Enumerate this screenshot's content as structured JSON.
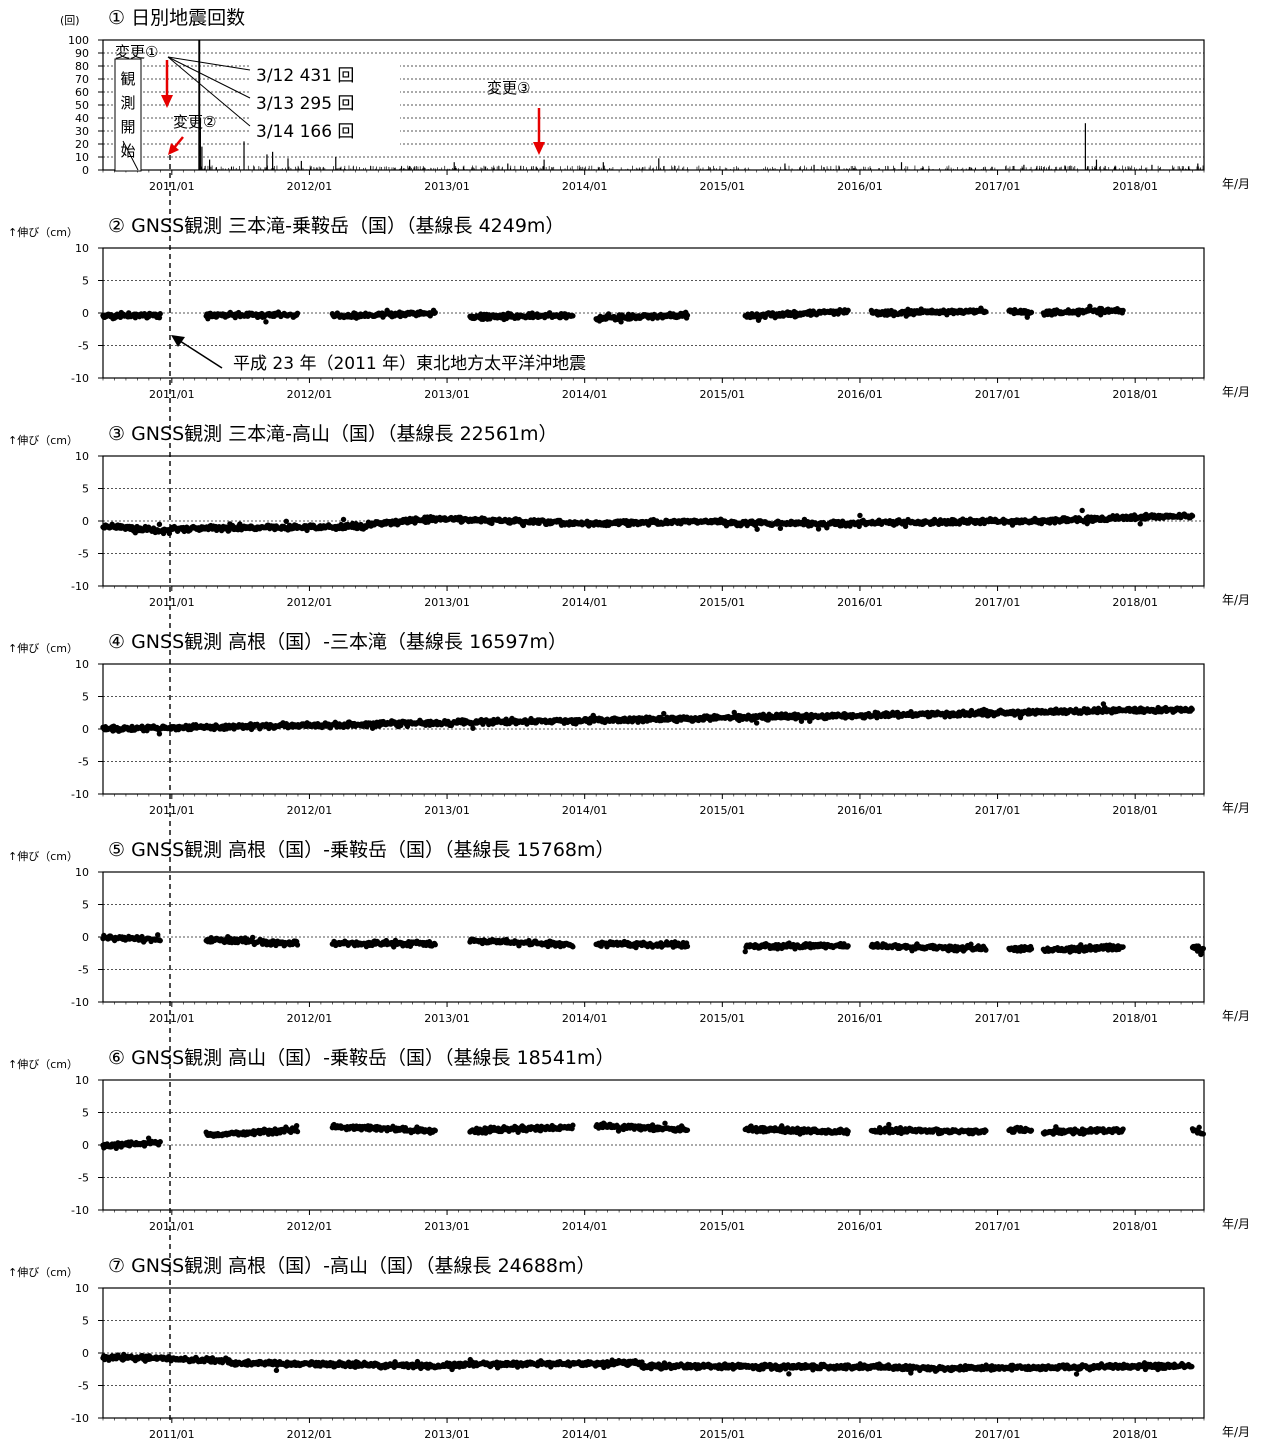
{
  "earthquake_annotations": {
    "unit": "(回)",
    "observation_start": [
      "観",
      "測",
      "開",
      "始"
    ],
    "change1": "変更①",
    "change2": "変更②",
    "change3": "変更③",
    "counts": [
      "3/12 431 回",
      "3/13 295 回",
      "3/14 166 回"
    ],
    "tohoku": "平成 23 年（2011 年）東北地方太平洋沖地震"
  },
  "chart_data": [
    {
      "type": "bar",
      "title": "① 日別地震回数",
      "xlabel": "年/月",
      "ylabel": "(回)",
      "ylim": [
        0,
        100
      ],
      "yticks": [
        0,
        10,
        20,
        30,
        40,
        50,
        60,
        70,
        80,
        90,
        100
      ],
      "xticks": [
        "2011/01",
        "2012/01",
        "2013/01",
        "2014/01",
        "2015/01",
        "2016/01",
        "2017/01",
        "2018/01"
      ],
      "xrange": [
        "2010/07",
        "2018/07"
      ],
      "grid": true,
      "spikes": [
        {
          "date": "2011/03/12",
          "value": 431
        },
        {
          "date": "2011/03/13",
          "value": 295
        },
        {
          "date": "2011/03/14",
          "value": 166
        },
        {
          "date": "2011/03/16",
          "value": 40
        },
        {
          "date": "2011/03/20",
          "value": 18
        },
        {
          "date": "2011/04/10",
          "value": 8
        },
        {
          "date": "2011/07/10",
          "value": 22
        },
        {
          "date": "2011/09/10",
          "value": 12
        },
        {
          "date": "2011/09/25",
          "value": 14
        },
        {
          "date": "2011/11/05",
          "value": 9
        },
        {
          "date": "2011/12/10",
          "value": 7
        },
        {
          "date": "2012/03/10",
          "value": 10
        },
        {
          "date": "2013/01/20",
          "value": 6
        },
        {
          "date": "2013/06/10",
          "value": 5
        },
        {
          "date": "2013/09/15",
          "value": 8
        },
        {
          "date": "2014/02/20",
          "value": 6
        },
        {
          "date": "2014/07/15",
          "value": 9
        },
        {
          "date": "2015/06/15",
          "value": 5
        },
        {
          "date": "2015/09/01",
          "value": 4
        },
        {
          "date": "2016/04/20",
          "value": 6
        },
        {
          "date": "2017/03/10",
          "value": 4
        },
        {
          "date": "2017/08/21",
          "value": 36
        },
        {
          "date": "2017/09/20",
          "value": 8
        },
        {
          "date": "2018/02/15",
          "value": 4
        },
        {
          "date": "2018/06/15",
          "value": 5
        }
      ],
      "annotations": {
        "change1": "2011/03/01",
        "change2": "2011/03/10",
        "change3": "2013/11/01"
      }
    },
    {
      "type": "scatter",
      "title": "② GNSS観測 三本滝-乗鞍岳（国）（基線長 4249m）",
      "ylabel": "↑伸び（cm）",
      "xlabel": "年/月",
      "ylim": [
        -10,
        10
      ],
      "yticks": [
        -10,
        -5,
        0,
        5,
        10
      ],
      "xticks": [
        "2011/01",
        "2012/01",
        "2013/01",
        "2014/01",
        "2015/01",
        "2016/01",
        "2017/01",
        "2018/01"
      ],
      "xrange": [
        "2010/07",
        "2018/07"
      ],
      "grid": true,
      "series": [
        {
          "segments": [
            {
              "start": "2010/07",
              "end": "2010/12",
              "y": [
                -0.5,
                -0.3
              ]
            },
            {
              "start": "2011/04",
              "end": "2011/12",
              "y": [
                -0.4,
                -0.2
              ]
            },
            {
              "start": "2012/03",
              "end": "2012/12",
              "y": [
                -0.5,
                0.0
              ]
            },
            {
              "start": "2013/03",
              "end": "2013/12",
              "y": [
                -0.6,
                -0.4
              ]
            },
            {
              "start": "2014/02",
              "end": "2014/10",
              "y": [
                -0.8,
                -0.3
              ]
            },
            {
              "start": "2015/03",
              "end": "2015/12",
              "y": [
                -0.5,
                0.3
              ]
            },
            {
              "start": "2016/02",
              "end": "2016/12",
              "y": [
                0.0,
                0.3
              ]
            },
            {
              "start": "2017/02",
              "end": "2017/04",
              "y": [
                0.2,
                0.0
              ]
            },
            {
              "start": "2017/05",
              "end": "2017/12",
              "y": [
                0.0,
                0.5
              ]
            }
          ]
        }
      ]
    },
    {
      "type": "scatter",
      "title": "③ GNSS観測 三本滝-高山（国）（基線長 22561m）",
      "ylabel": "↑伸び（cm）",
      "xlabel": "年/月",
      "ylim": [
        -10,
        10
      ],
      "yticks": [
        -10,
        -5,
        0,
        5,
        10
      ],
      "xticks": [
        "2011/01",
        "2012/01",
        "2013/01",
        "2014/01",
        "2015/01",
        "2016/01",
        "2017/01",
        "2018/01"
      ],
      "xrange": [
        "2010/07",
        "2018/07"
      ],
      "grid": true,
      "series": [
        {
          "segments": [
            {
              "start": "2010/07",
              "end": "2011/01",
              "y": [
                -0.8,
                -1.5
              ]
            },
            {
              "start": "2011/01",
              "end": "2012/06",
              "y": [
                -1.2,
                -0.8
              ]
            },
            {
              "start": "2012/06",
              "end": "2013/01",
              "y": [
                -0.5,
                0.4
              ]
            },
            {
              "start": "2013/01",
              "end": "2014/01",
              "y": [
                0.3,
                -0.4
              ]
            },
            {
              "start": "2014/01",
              "end": "2015/01",
              "y": [
                -0.4,
                0.0
              ]
            },
            {
              "start": "2015/01",
              "end": "2016/01",
              "y": [
                -0.3,
                -0.4
              ]
            },
            {
              "start": "2016/01",
              "end": "2017/01",
              "y": [
                -0.3,
                0.0
              ]
            },
            {
              "start": "2017/01",
              "end": "2018/06",
              "y": [
                -0.2,
                0.8
              ]
            }
          ]
        }
      ]
    },
    {
      "type": "scatter",
      "title": "④ GNSS観測 高根（国）-三本滝（基線長 16597m）",
      "ylabel": "↑伸び（cm）",
      "xlabel": "年/月",
      "ylim": [
        -10,
        10
      ],
      "yticks": [
        -10,
        -5,
        0,
        5,
        10
      ],
      "xticks": [
        "2011/01",
        "2012/01",
        "2013/01",
        "2014/01",
        "2015/01",
        "2016/01",
        "2017/01",
        "2018/01"
      ],
      "xrange": [
        "2010/07",
        "2018/07"
      ],
      "grid": true,
      "series": [
        {
          "segments": [
            {
              "start": "2010/07",
              "end": "2018/06",
              "y": [
                0.0,
                3.0
              ]
            }
          ]
        }
      ]
    },
    {
      "type": "scatter",
      "title": "⑤ GNSS観測 高根（国）-乗鞍岳（国）（基線長 15768m）",
      "ylabel": "↑伸び（cm）",
      "xlabel": "年/月",
      "ylim": [
        -10,
        10
      ],
      "yticks": [
        -10,
        -5,
        0,
        5,
        10
      ],
      "xticks": [
        "2011/01",
        "2012/01",
        "2013/01",
        "2014/01",
        "2015/01",
        "2016/01",
        "2017/01",
        "2018/01"
      ],
      "xrange": [
        "2010/07",
        "2018/07"
      ],
      "grid": true,
      "series": [
        {
          "segments": [
            {
              "start": "2010/07",
              "end": "2010/12",
              "y": [
                0.0,
                -0.5
              ]
            },
            {
              "start": "2011/04",
              "end": "2011/12",
              "y": [
                -0.4,
                -1.0
              ]
            },
            {
              "start": "2012/03",
              "end": "2012/12",
              "y": [
                -1.0,
                -1.0
              ]
            },
            {
              "start": "2013/03",
              "end": "2013/12",
              "y": [
                -0.5,
                -1.2
              ]
            },
            {
              "start": "2014/02",
              "end": "2014/10",
              "y": [
                -1.0,
                -1.3
              ]
            },
            {
              "start": "2015/03",
              "end": "2015/12",
              "y": [
                -1.5,
                -1.3
              ]
            },
            {
              "start": "2016/02",
              "end": "2016/12",
              "y": [
                -1.3,
                -1.8
              ]
            },
            {
              "start": "2017/02",
              "end": "2017/04",
              "y": [
                -1.8,
                -1.8
              ]
            },
            {
              "start": "2017/05",
              "end": "2017/12",
              "y": [
                -2.0,
                -1.6
              ]
            },
            {
              "start": "2018/06",
              "end": "2018/07",
              "y": [
                -1.5,
                -2.0
              ]
            }
          ]
        }
      ]
    },
    {
      "type": "scatter",
      "title": "⑥ GNSS観測 高山（国）-乗鞍岳（国）（基線長 18541m）",
      "ylabel": "↑伸び（cm）",
      "xlabel": "年/月",
      "ylim": [
        -10,
        10
      ],
      "yticks": [
        -10,
        -5,
        0,
        5,
        10
      ],
      "xticks": [
        "2011/01",
        "2012/01",
        "2013/01",
        "2014/01",
        "2015/01",
        "2016/01",
        "2017/01",
        "2018/01"
      ],
      "xrange": [
        "2010/07",
        "2018/07"
      ],
      "grid": true,
      "series": [
        {
          "segments": [
            {
              "start": "2010/07",
              "end": "2010/12",
              "y": [
                -0.2,
                0.5
              ]
            },
            {
              "start": "2011/04",
              "end": "2011/12",
              "y": [
                1.5,
                2.3
              ]
            },
            {
              "start": "2012/03",
              "end": "2012/12",
              "y": [
                2.8,
                2.2
              ]
            },
            {
              "start": "2013/03",
              "end": "2013/12",
              "y": [
                2.2,
                2.8
              ]
            },
            {
              "start": "2014/02",
              "end": "2014/10",
              "y": [
                3.0,
                2.4
              ]
            },
            {
              "start": "2015/03",
              "end": "2015/12",
              "y": [
                2.5,
                2.0
              ]
            },
            {
              "start": "2016/02",
              "end": "2016/12",
              "y": [
                2.2,
                2.1
              ]
            },
            {
              "start": "2017/02",
              "end": "2017/04",
              "y": [
                2.3,
                2.2
              ]
            },
            {
              "start": "2017/05",
              "end": "2017/12",
              "y": [
                2.0,
                2.3
              ]
            },
            {
              "start": "2018/06",
              "end": "2018/07",
              "y": [
                2.5,
                1.5
              ]
            }
          ]
        }
      ]
    },
    {
      "type": "scatter",
      "title": "⑦ GNSS観測 高根（国）-高山（国）（基線長 24688m）",
      "ylabel": "↑伸び（cm）",
      "xlabel": "年/月",
      "ylim": [
        -10,
        10
      ],
      "yticks": [
        -10,
        -5,
        0,
        5,
        10
      ],
      "xticks": [
        "2011/01",
        "2012/01",
        "2013/01",
        "2014/01",
        "2015/01",
        "2016/01",
        "2017/01",
        "2018/01"
      ],
      "xrange": [
        "2010/07",
        "2018/07"
      ],
      "grid": true,
      "series": [
        {
          "segments": [
            {
              "start": "2010/07",
              "end": "2011/06",
              "y": [
                -0.6,
                -1.2
              ]
            },
            {
              "start": "2011/06",
              "end": "2013/01",
              "y": [
                -1.5,
                -2.0
              ]
            },
            {
              "start": "2013/01",
              "end": "2014/06",
              "y": [
                -1.8,
                -1.5
              ]
            },
            {
              "start": "2014/06",
              "end": "2016/06",
              "y": [
                -2.0,
                -2.2
              ]
            },
            {
              "start": "2016/06",
              "end": "2018/06",
              "y": [
                -2.4,
                -2.0
              ]
            }
          ]
        }
      ]
    }
  ]
}
